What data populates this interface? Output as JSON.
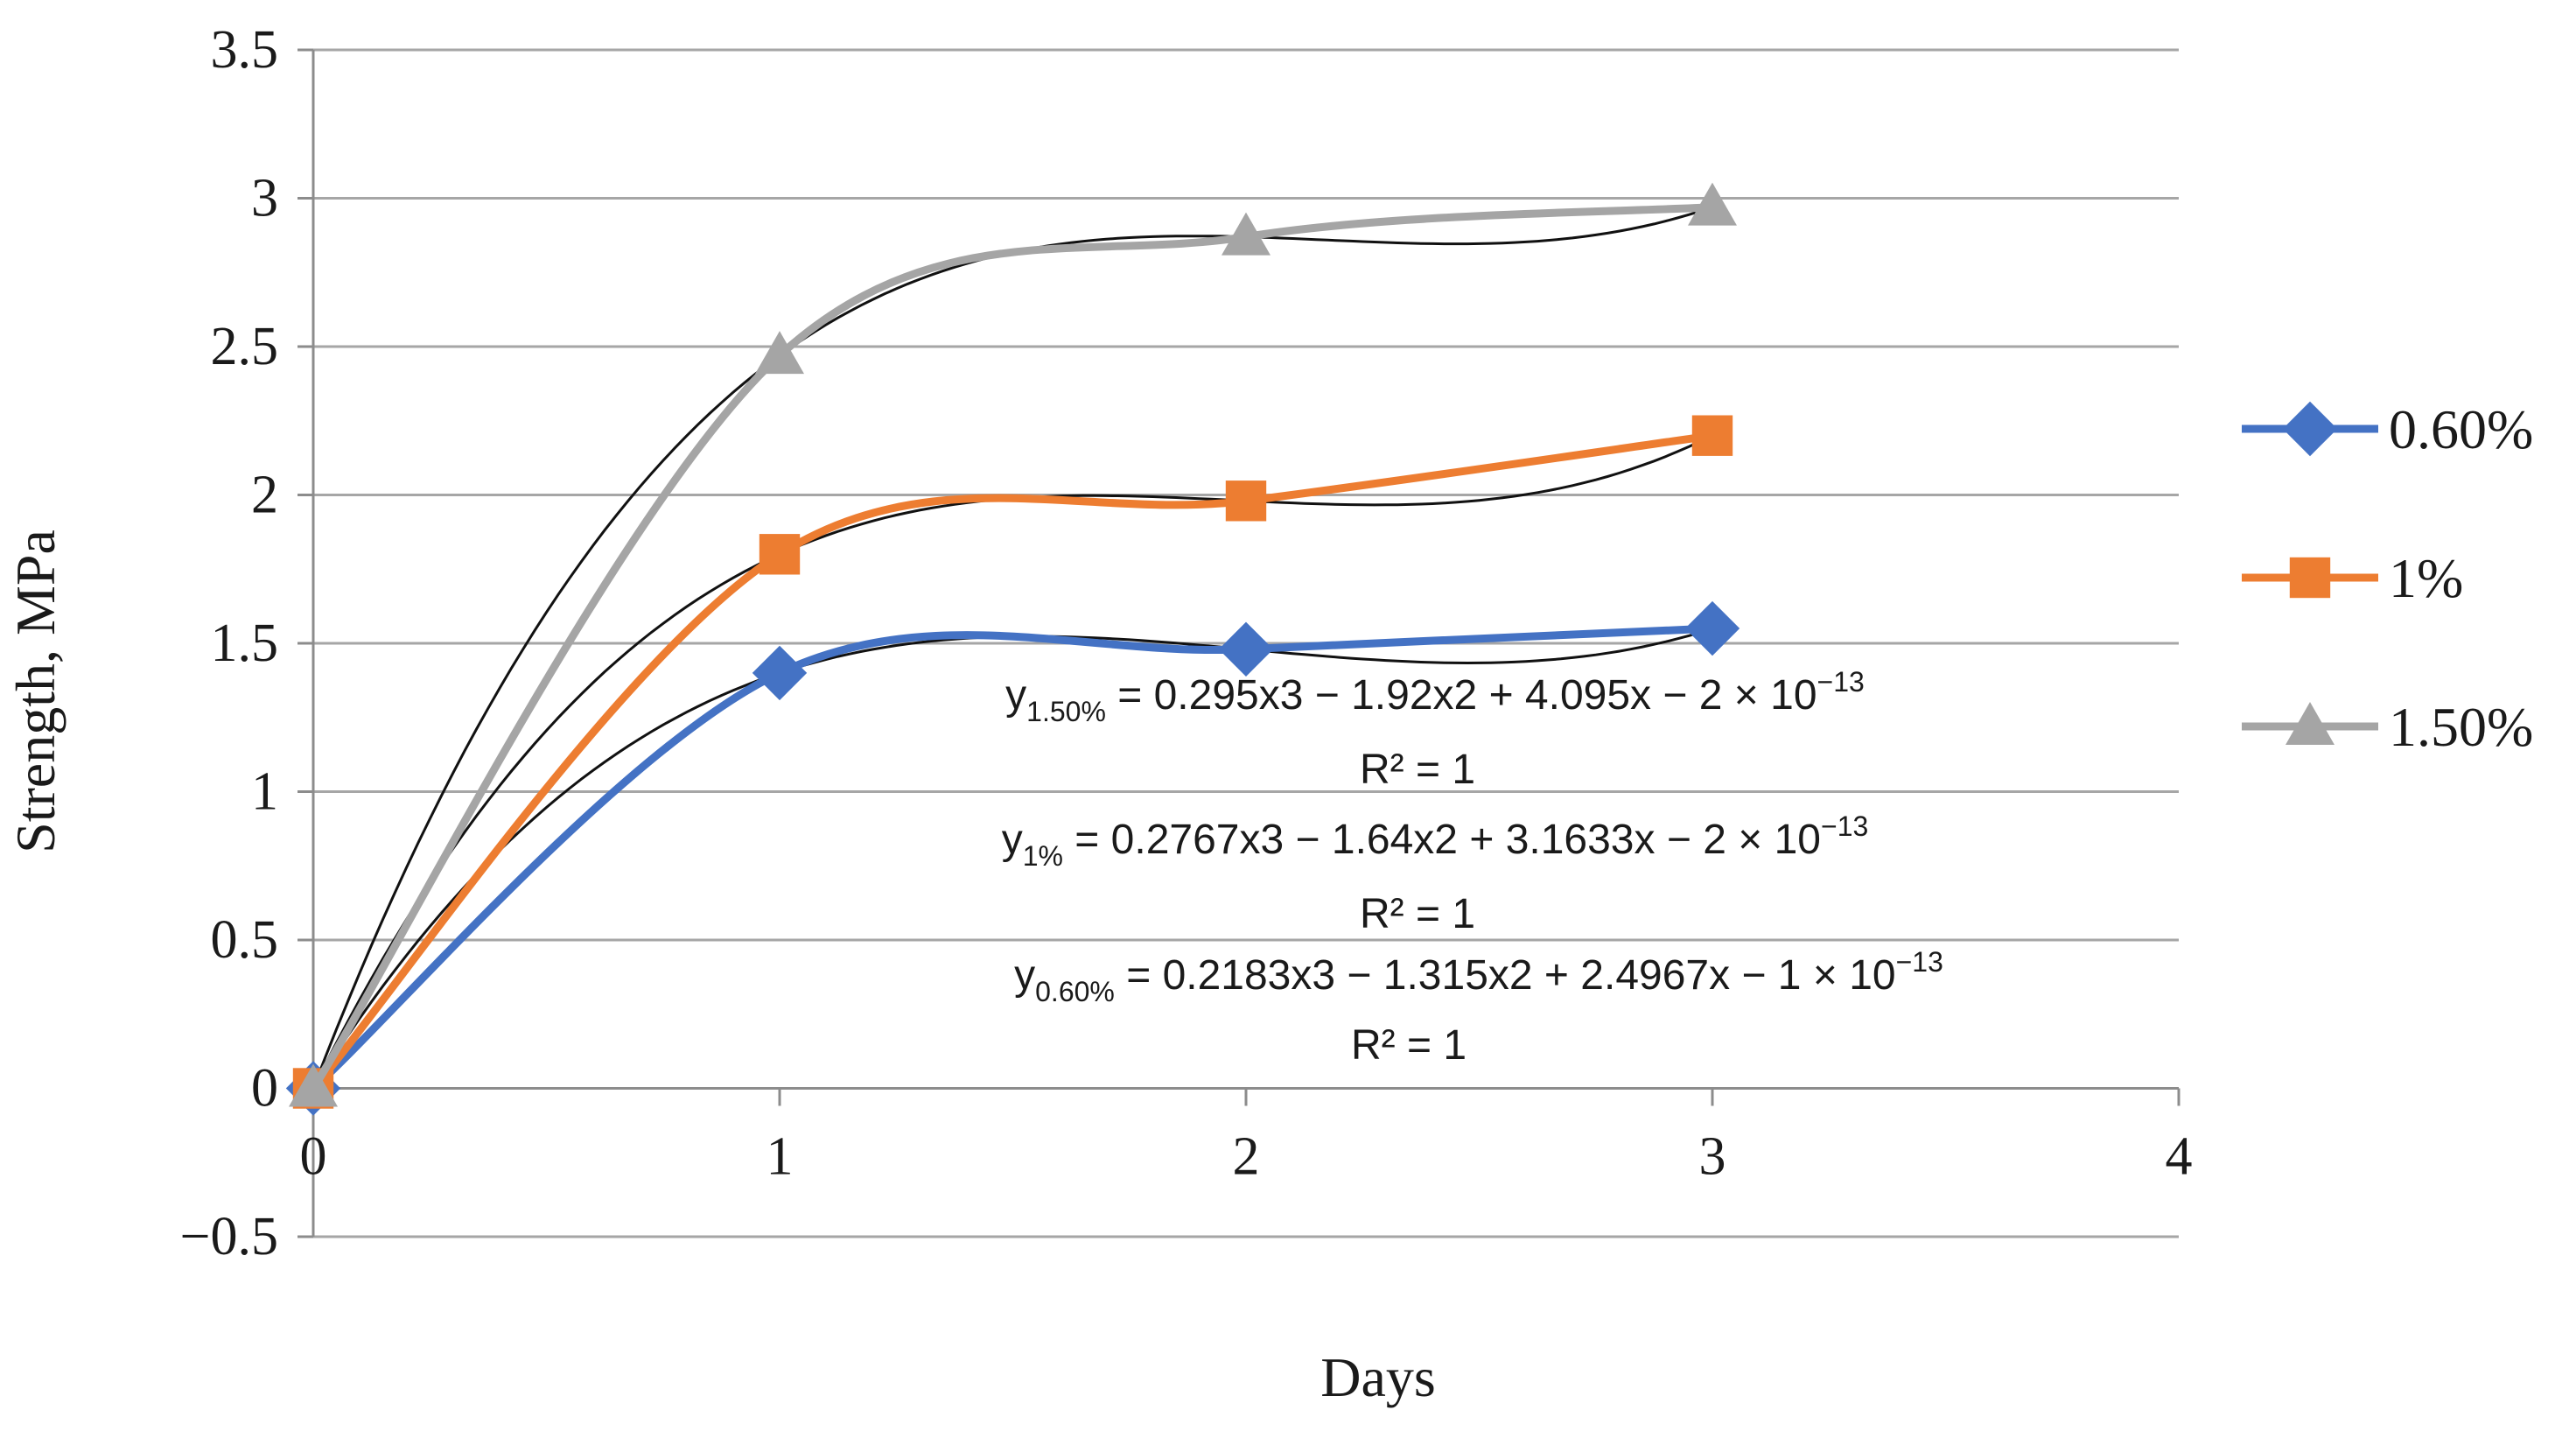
{
  "chart_data": {
    "type": "line",
    "title": "",
    "xlabel": "Days",
    "ylabel": "Strength, MPa",
    "xlim": [
      0,
      4
    ],
    "ylim": [
      -0.5,
      3.5
    ],
    "x_ticks": [
      "0",
      "1",
      "2",
      "3",
      "4"
    ],
    "y_ticks": [
      "3.5",
      "3",
      "2.5",
      "2",
      "1.5",
      "1",
      "0.5",
      "0",
      "−0.5"
    ],
    "grid": true,
    "legend_position": "right",
    "x": [
      0,
      1,
      2,
      3
    ],
    "series": [
      {
        "name": "0.60%",
        "color": "#4472C4",
        "marker": "diamond",
        "values": [
          0,
          1.4,
          1.48,
          1.55
        ],
        "trendline": {
          "a3": 0.2183,
          "a2": -1.315,
          "a1": 2.4967,
          "a0": 0
        }
      },
      {
        "name": "1%",
        "color": "#ED7D31",
        "marker": "square",
        "values": [
          0,
          1.8,
          1.98,
          2.2
        ],
        "trendline": {
          "a3": 0.2767,
          "a2": -1.64,
          "a1": 3.1633,
          "a0": 0
        }
      },
      {
        "name": "1.50%",
        "color": "#A5A5A5",
        "marker": "triangle",
        "values": [
          0,
          2.47,
          2.87,
          2.97
        ],
        "trendline": {
          "a3": 0.295,
          "a2": -1.92,
          "a1": 4.095,
          "a0": 0
        }
      }
    ],
    "annotations": [
      {
        "y_prefix": "y",
        "sub": "1.50%",
        "rest": " = 0.295x3 − 1.92x2 + 4.095x − 2 × 10",
        "sup": "−13",
        "r2": "R² = 1"
      },
      {
        "y_prefix": "y",
        "sub": "1%",
        "rest": " = 0.2767x3 − 1.64x2 + 3.1633x − 2 × 10",
        "sup": "−13",
        "r2": "R² = 1"
      },
      {
        "y_prefix": "y",
        "sub": "0.60%",
        "rest": " = 0.2183x3 − 1.315x2 + 2.4967x − 1 × 10",
        "sup": "−13",
        "r2": "R² = 1"
      }
    ]
  }
}
